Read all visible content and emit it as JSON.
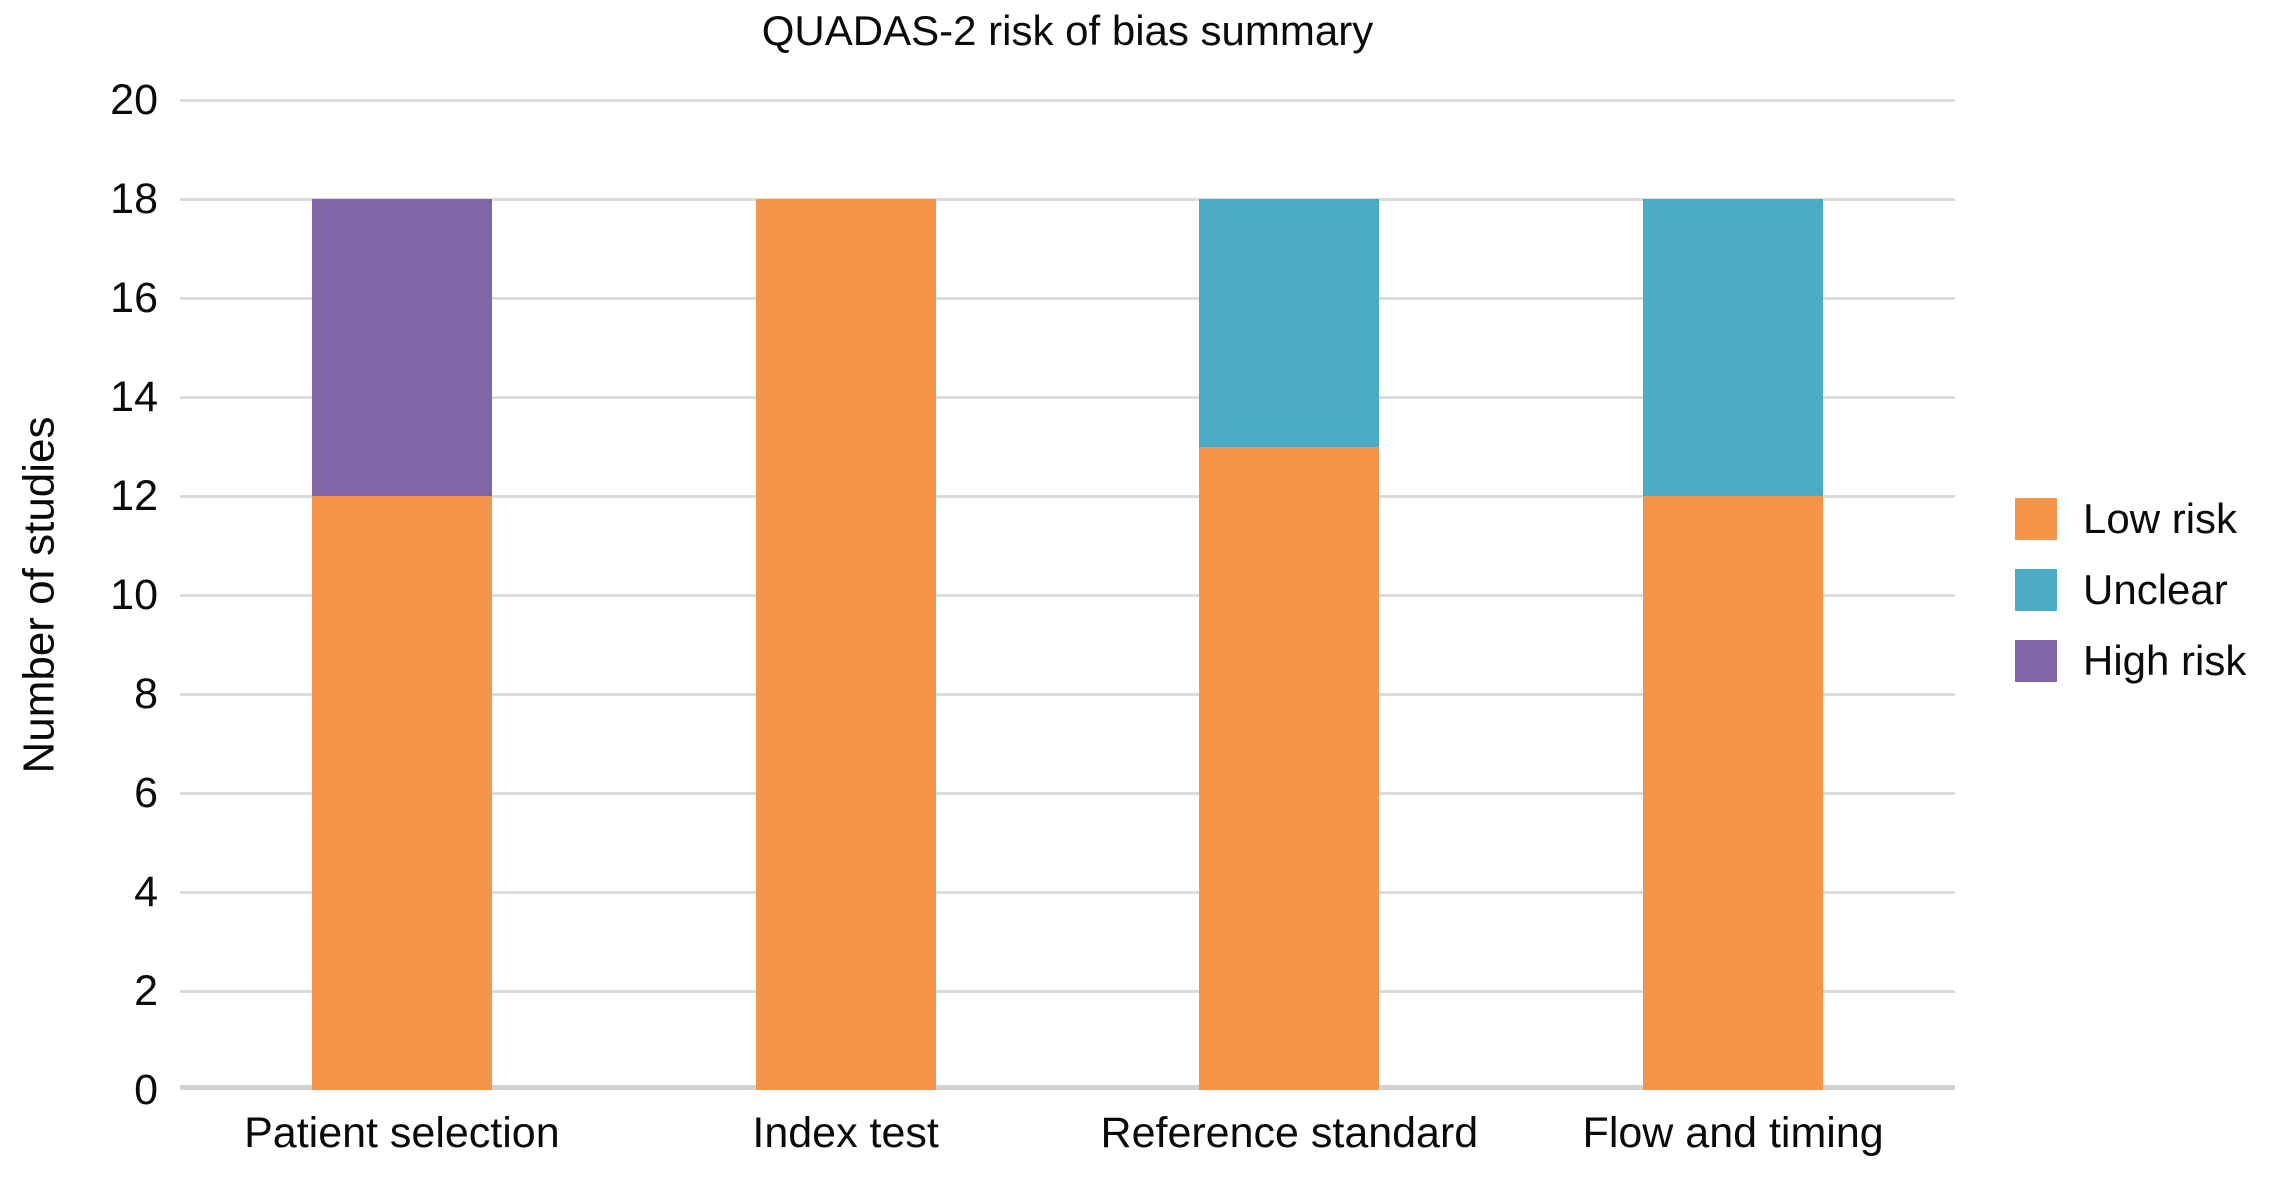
{
  "chart_data": {
    "type": "bar",
    "stacked": true,
    "title": "QUADAS-2 risk of bias summary",
    "xlabel": "",
    "ylabel": "Number of studies",
    "categories": [
      "Patient selection",
      "Index test",
      "Reference standard",
      "Flow and timing"
    ],
    "series": [
      {
        "name": "Low risk",
        "color": "#F5954A",
        "values": [
          12,
          18,
          13,
          12
        ]
      },
      {
        "name": "Unclear",
        "color": "#4AACC6",
        "values": [
          0,
          0,
          5,
          6
        ]
      },
      {
        "name": "High risk",
        "color": "#8066A6",
        "values": [
          6,
          0,
          0,
          0
        ]
      }
    ],
    "ylim": [
      0,
      20
    ],
    "yticks": [
      0,
      2,
      4,
      6,
      8,
      10,
      12,
      14,
      16,
      18,
      20
    ],
    "grid": true,
    "grid_color": "#dcdcdc",
    "axis_line_color": "#d2d2d2",
    "legend_position": "right",
    "legend_labels": [
      "Low risk",
      "Unclear",
      "High risk"
    ]
  }
}
